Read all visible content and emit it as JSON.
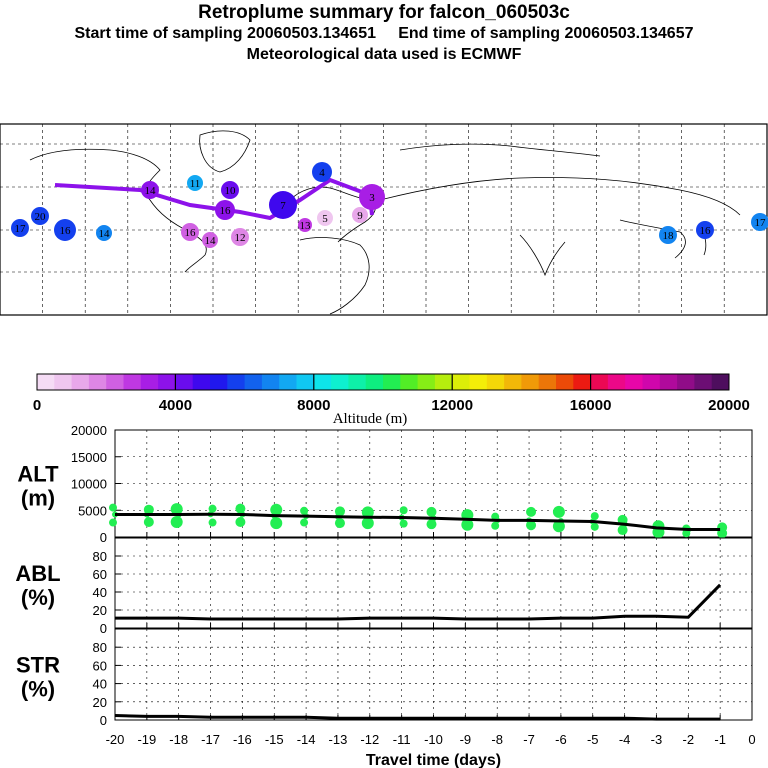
{
  "header": {
    "title": "Retroplume summary for falcon_060503c",
    "start_label": "Start time of sampling 20060503.134651",
    "end_label": "End time of sampling 20060503.134657",
    "met_label": "Meteorological data used is ECMWF"
  },
  "colorbar": {
    "label": "Altitude (m)",
    "ticks": [
      "0",
      "4000",
      "8000",
      "12000",
      "16000",
      "20000"
    ],
    "colors": [
      "#f5dcf5",
      "#efc6ef",
      "#e8a8ea",
      "#de86e5",
      "#d060e2",
      "#bf38e2",
      "#a81ee5",
      "#8d12ea",
      "#6a0cee",
      "#3f08ee",
      "#2018ee",
      "#1440ee",
      "#1262ee",
      "#1284f0",
      "#12a8f2",
      "#10c8f2",
      "#0ee4ea",
      "#0ef0d0",
      "#0ef0a8",
      "#0eee80",
      "#22ee52",
      "#52ee26",
      "#86ee16",
      "#b6ee0e",
      "#dcee08",
      "#f4ee08",
      "#f4d808",
      "#f2b808",
      "#f09a08",
      "#ec7608",
      "#ec4a08",
      "#ec1a12",
      "#ec0854",
      "#ec0888",
      "#e806a8",
      "#d006ac",
      "#b00a9c",
      "#900c88",
      "#6c0e74",
      "#4e0e5e"
    ]
  },
  "map": {
    "marker_labels": [
      "20",
      "16",
      "14",
      "14",
      "16",
      "10",
      "11",
      "16",
      "14",
      "12",
      "13",
      "9",
      "7",
      "4",
      "5",
      "3",
      "17",
      "18",
      "16",
      "17"
    ]
  },
  "chart_data": [
    {
      "type": "line",
      "panel": "ALT",
      "ylabel_lines": [
        "ALT",
        "(m)"
      ],
      "ylim": [
        0,
        20000
      ],
      "yticks": [
        "20000",
        "15000",
        "10000",
        "5000",
        "0"
      ],
      "x": [
        -20,
        -19,
        -18,
        -17,
        -16,
        -15,
        -14,
        -13,
        -12,
        -11,
        -10,
        -9,
        -8,
        -7,
        -6,
        -5,
        -4,
        -3,
        -2,
        -1
      ],
      "values": [
        4200,
        4200,
        4200,
        4250,
        4200,
        4000,
        3900,
        3800,
        3700,
        3650,
        3500,
        3300,
        3100,
        3100,
        3000,
        2900,
        2400,
        1700,
        1400,
        1400
      ],
      "scatter_series": [
        {
          "name": "upper",
          "values": [
            5500,
            5100,
            5200,
            5300,
            5300,
            5100,
            4900,
            4800,
            4600,
            5000,
            4700,
            4100,
            3800,
            4700,
            4700,
            3900,
            3200,
            2000,
            1600,
            1800
          ]
        },
        {
          "name": "lower",
          "values": [
            2700,
            2800,
            2800,
            2700,
            2800,
            2600,
            2700,
            2600,
            2600,
            2500,
            2400,
            2300,
            2100,
            2200,
            2000,
            1900,
            1300,
            900,
            700,
            700
          ]
        }
      ]
    },
    {
      "type": "line",
      "panel": "ABL",
      "ylabel_lines": [
        "ABL",
        "(%)"
      ],
      "ylim": [
        0,
        100
      ],
      "yticks": [
        "80",
        "60",
        "40",
        "20",
        "0"
      ],
      "x": [
        -20,
        -19,
        -18,
        -17,
        -16,
        -15,
        -14,
        -13,
        -12,
        -11,
        -10,
        -9,
        -8,
        -7,
        -6,
        -5,
        -4,
        -3,
        -2,
        -1
      ],
      "values": [
        11,
        11,
        11,
        10,
        10,
        10,
        10,
        10,
        11,
        11,
        11,
        10,
        10,
        10,
        11,
        11,
        13,
        13,
        12,
        48
      ]
    },
    {
      "type": "line",
      "panel": "STR",
      "ylabel_lines": [
        "STR",
        "(%)"
      ],
      "ylim": [
        0,
        100
      ],
      "yticks": [
        "80",
        "60",
        "40",
        "20",
        "0"
      ],
      "x": [
        -20,
        -19,
        -18,
        -17,
        -16,
        -15,
        -14,
        -13,
        -12,
        -11,
        -10,
        -9,
        -8,
        -7,
        -6,
        -5,
        -4,
        -3,
        -2,
        -1
      ],
      "values": [
        5,
        4,
        4,
        3,
        3,
        3,
        3,
        2,
        2,
        2,
        2,
        2,
        2,
        2,
        2,
        2,
        2,
        1,
        1,
        1
      ],
      "xticks": [
        "-20",
        "-19",
        "-18",
        "-17",
        "-16",
        "-15",
        "-14",
        "-13",
        "-12",
        "-11",
        "-10",
        "-9",
        "-8",
        "-7",
        "-6",
        "-5",
        "-4",
        "-3",
        "-2",
        "-1",
        "0"
      ],
      "xlabel": "Travel time (days)"
    }
  ]
}
